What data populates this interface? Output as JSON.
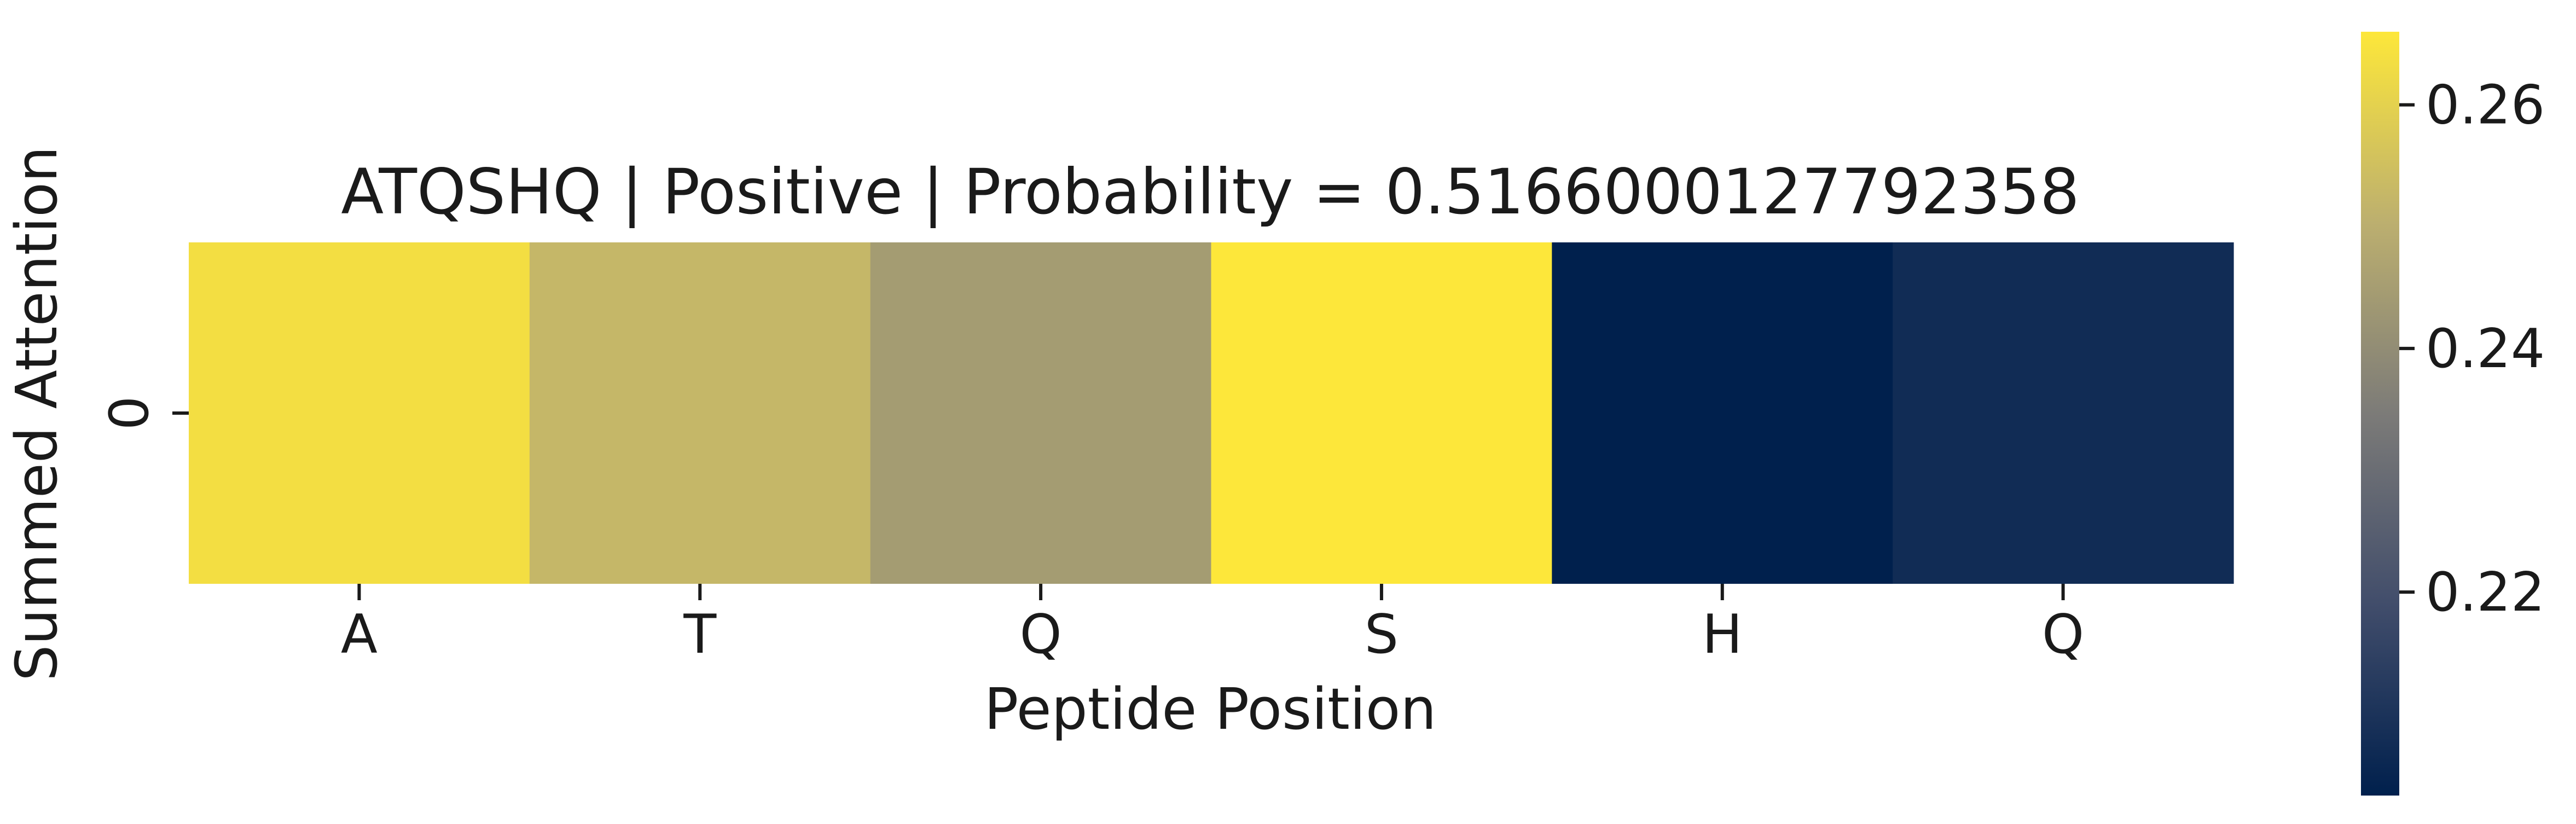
{
  "chart_data": {
    "type": "heatmap",
    "title": "ATQSHQ | Positive | Probability = 0.5166000127792358",
    "xlabel": "Peptide Position",
    "ylabel": "Summed Attention",
    "x_categories": [
      "A",
      "T",
      "Q",
      "S",
      "H",
      "Q"
    ],
    "y_categories": [
      "0"
    ],
    "values": [
      [
        0.2635,
        0.2525,
        0.2445,
        0.266,
        0.2033,
        0.2075
      ]
    ],
    "colormap": "cividis",
    "color_range": [
      0.2033,
      0.266
    ],
    "colorbar": {
      "ticks": [
        0.22,
        0.24,
        0.26
      ],
      "tick_labels": [
        "0.22",
        "0.24",
        "0.26"
      ],
      "placement": "right"
    },
    "grid": false
  }
}
